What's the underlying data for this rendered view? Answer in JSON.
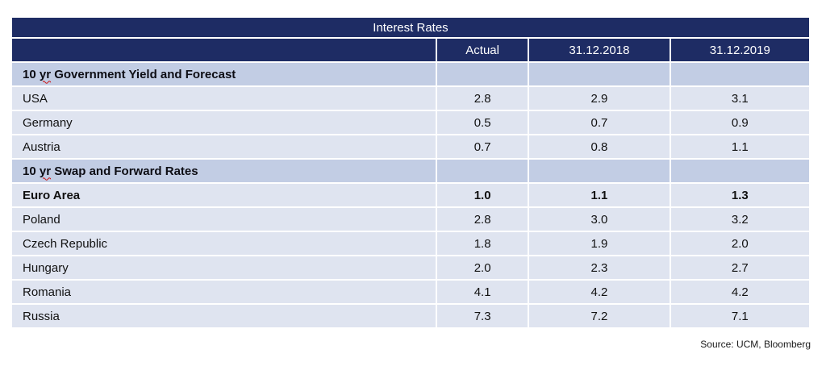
{
  "table": {
    "title": "Interest Rates",
    "columns": [
      "",
      "Actual",
      "31.12.2018",
      "31.12.2019"
    ],
    "rows": [
      {
        "kind": "section",
        "pre": "10",
        "word": "yr",
        "post": "Government Yield and Forecast"
      },
      {
        "kind": "data",
        "label": "USA",
        "values": [
          "2.8",
          "2.9",
          "3.1"
        ]
      },
      {
        "kind": "data",
        "label": "Germany",
        "values": [
          "0.5",
          "0.7",
          "0.9"
        ]
      },
      {
        "kind": "data",
        "label": "Austria",
        "values": [
          "0.7",
          "0.8",
          "1.1"
        ]
      },
      {
        "kind": "section",
        "pre": "10",
        "word": "yr",
        "post": "Swap and Forward Rates"
      },
      {
        "kind": "data",
        "label": "Euro Area",
        "bold": true,
        "values": [
          "1.0",
          "1.1",
          "1.3"
        ]
      },
      {
        "kind": "data",
        "label": "Poland",
        "values": [
          "2.8",
          "3.0",
          "3.2"
        ]
      },
      {
        "kind": "data",
        "label": "Czech Republic",
        "values": [
          "1.8",
          "1.9",
          "2.0"
        ]
      },
      {
        "kind": "data",
        "label": "Hungary",
        "values": [
          "2.0",
          "2.3",
          "2.7"
        ]
      },
      {
        "kind": "data",
        "label": "Romania",
        "values": [
          "4.1",
          "4.2",
          "4.2"
        ]
      },
      {
        "kind": "data",
        "label": "Russia",
        "values": [
          "7.3",
          "7.2",
          "7.1"
        ]
      }
    ],
    "colors": {
      "header_bg": "#1e2c64",
      "header_text": "#ffffff",
      "section_row_bg": "#c2cde4",
      "data_row_bg": "#dfe4f0",
      "cell_gap": "#ffffff",
      "body_text": "#111111",
      "spellcheck_underline": "#cc1111"
    }
  },
  "footer": {
    "source_note": "Source: UCM, Bloomberg"
  }
}
